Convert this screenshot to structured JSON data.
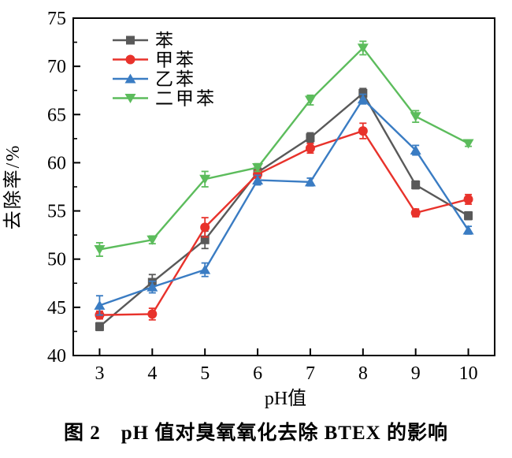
{
  "figure": {
    "caption": "图 2　pH 值对臭氧氧化去除 BTEX 的影响",
    "background": "#ffffff"
  },
  "chart_data": {
    "type": "line",
    "title": "",
    "xlabel": "pH值",
    "ylabel": "去除率/%",
    "x": [
      3,
      4,
      5,
      6,
      7,
      8,
      9,
      10
    ],
    "xlim": [
      2.5,
      10.5
    ],
    "ylim": [
      40,
      75
    ],
    "x_ticks": [
      3,
      4,
      5,
      6,
      7,
      8,
      9,
      10
    ],
    "y_major_ticks": [
      40,
      45,
      50,
      55,
      60,
      65,
      70,
      75
    ],
    "y_minor_ticks": [
      42.5,
      47.5,
      52.5,
      57.5,
      62.5,
      67.5,
      72.5
    ],
    "grid": false,
    "legend_position": "upper-left-inside",
    "error_bars": true,
    "axis_color": "#000000",
    "series": [
      {
        "name": "苯",
        "marker": "square",
        "color": "#595959",
        "values": [
          43.0,
          47.6,
          52.0,
          59.0,
          62.6,
          67.2,
          57.7,
          54.5
        ],
        "errors": [
          0.4,
          0.8,
          0.9,
          0.5,
          0.5,
          0.5,
          0.4,
          0.4
        ]
      },
      {
        "name": "甲苯",
        "marker": "circle",
        "color": "#e8322b",
        "values": [
          44.2,
          44.3,
          53.3,
          58.8,
          61.5,
          63.3,
          54.8,
          56.2
        ],
        "errors": [
          0.4,
          0.6,
          1.0,
          0.4,
          0.5,
          0.8,
          0.4,
          0.5
        ]
      },
      {
        "name": "乙苯",
        "marker": "triangle-up",
        "color": "#3a7cc3",
        "values": [
          45.2,
          47.1,
          48.9,
          58.2,
          58.0,
          66.6,
          61.3,
          53.0
        ],
        "errors": [
          1.0,
          0.6,
          0.7,
          0.5,
          0.4,
          0.5,
          0.5,
          0.4
        ]
      },
      {
        "name": "二甲苯",
        "marker": "triangle-down",
        "color": "#5cbc5c",
        "values": [
          51.0,
          52.0,
          58.3,
          59.5,
          66.5,
          71.9,
          64.8,
          62.0
        ],
        "errors": [
          0.7,
          0.4,
          0.8,
          0.4,
          0.5,
          0.7,
          0.6,
          0.3
        ]
      }
    ]
  }
}
